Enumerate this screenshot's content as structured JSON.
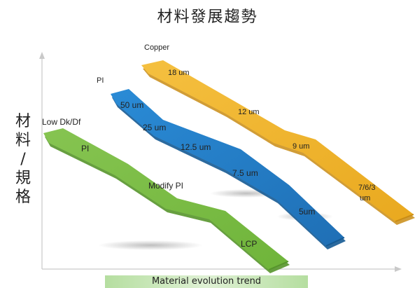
{
  "title": "材料發展趨勢",
  "y_axis_label": [
    "材",
    "料",
    "/",
    "規",
    "格"
  ],
  "x_axis_label": "Material evolution trend",
  "colors": {
    "low_dk": "#7dbb46",
    "pi": "#2f82c8",
    "copper": "#f2b52c"
  },
  "bands": {
    "low_dk": {
      "header": "Low Dk/Df",
      "stages": [
        "PI",
        "Modify PI",
        "LCP"
      ]
    },
    "pi": {
      "header": "PI",
      "stages": [
        "50 um",
        "25 um",
        "12.5 um",
        "7.5 um",
        "5um"
      ]
    },
    "copper": {
      "header": "Copper",
      "stages": [
        "18 um",
        "12 um",
        "9 um",
        "7/6/3",
        "um"
      ]
    }
  }
}
